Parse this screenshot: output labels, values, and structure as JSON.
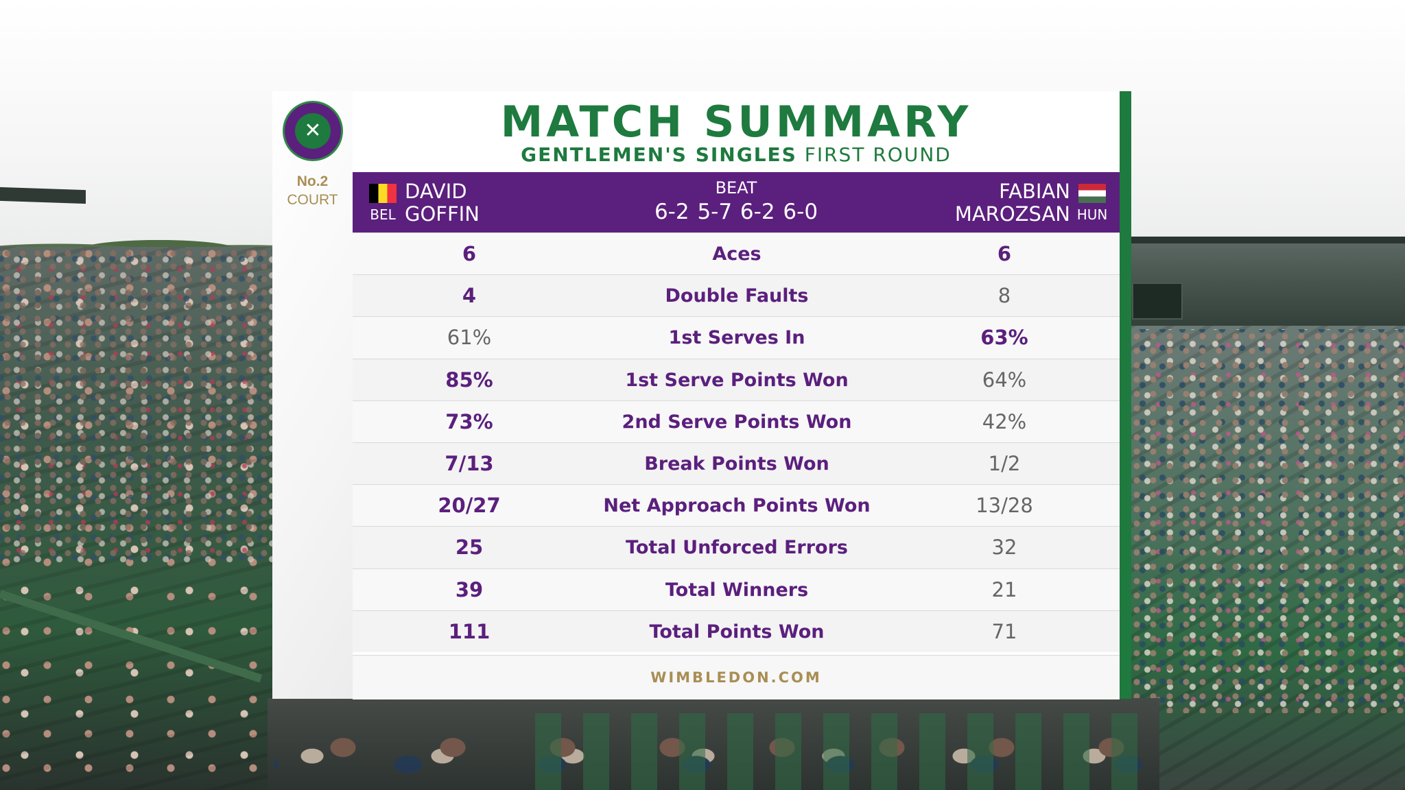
{
  "court": {
    "number": "No.2",
    "label": "COURT"
  },
  "title": "MATCH SUMMARY",
  "subtitle": {
    "event": "GENTLEMEN'S SINGLES",
    "round": "FIRST ROUND"
  },
  "match": {
    "player1": {
      "first": "DAVID",
      "last": "GOFFIN",
      "country": "BEL"
    },
    "player2": {
      "first": "FABIAN",
      "last": "MAROZSAN",
      "country": "HUN"
    },
    "result": "BEAT",
    "score": "6-2 5-7 6-2 6-0"
  },
  "stats": [
    {
      "label": "Aces",
      "p1": "6",
      "p2": "6",
      "lead": "both"
    },
    {
      "label": "Double Faults",
      "p1": "4",
      "p2": "8",
      "lead": "p1"
    },
    {
      "label": "1st Serves In",
      "p1": "61%",
      "p2": "63%",
      "lead": "p2"
    },
    {
      "label": "1st Serve Points Won",
      "p1": "85%",
      "p2": "64%",
      "lead": "p1"
    },
    {
      "label": "2nd Serve Points Won",
      "p1": "73%",
      "p2": "42%",
      "lead": "p1"
    },
    {
      "label": "Break Points Won",
      "p1": "7/13",
      "p2": "1/2",
      "lead": "p1"
    },
    {
      "label": "Net Approach Points Won",
      "p1": "20/27",
      "p2": "13/28",
      "lead": "p1"
    },
    {
      "label": "Total Unforced Errors",
      "p1": "25",
      "p2": "32",
      "lead": "p1"
    },
    {
      "label": "Total Winners",
      "p1": "39",
      "p2": "21",
      "lead": "p1"
    },
    {
      "label": "Total Points Won",
      "p1": "111",
      "p2": "71",
      "lead": "p1"
    }
  ],
  "footer": "WIMBLEDON.COM",
  "colors": {
    "purple": "#5b1f7d",
    "green": "#1e7a3e",
    "gold": "#a98e54"
  },
  "icons": {
    "logo": "wimbledon-logo-icon",
    "flag1": "belgium-flag-icon",
    "flag2": "hungary-flag-icon"
  }
}
